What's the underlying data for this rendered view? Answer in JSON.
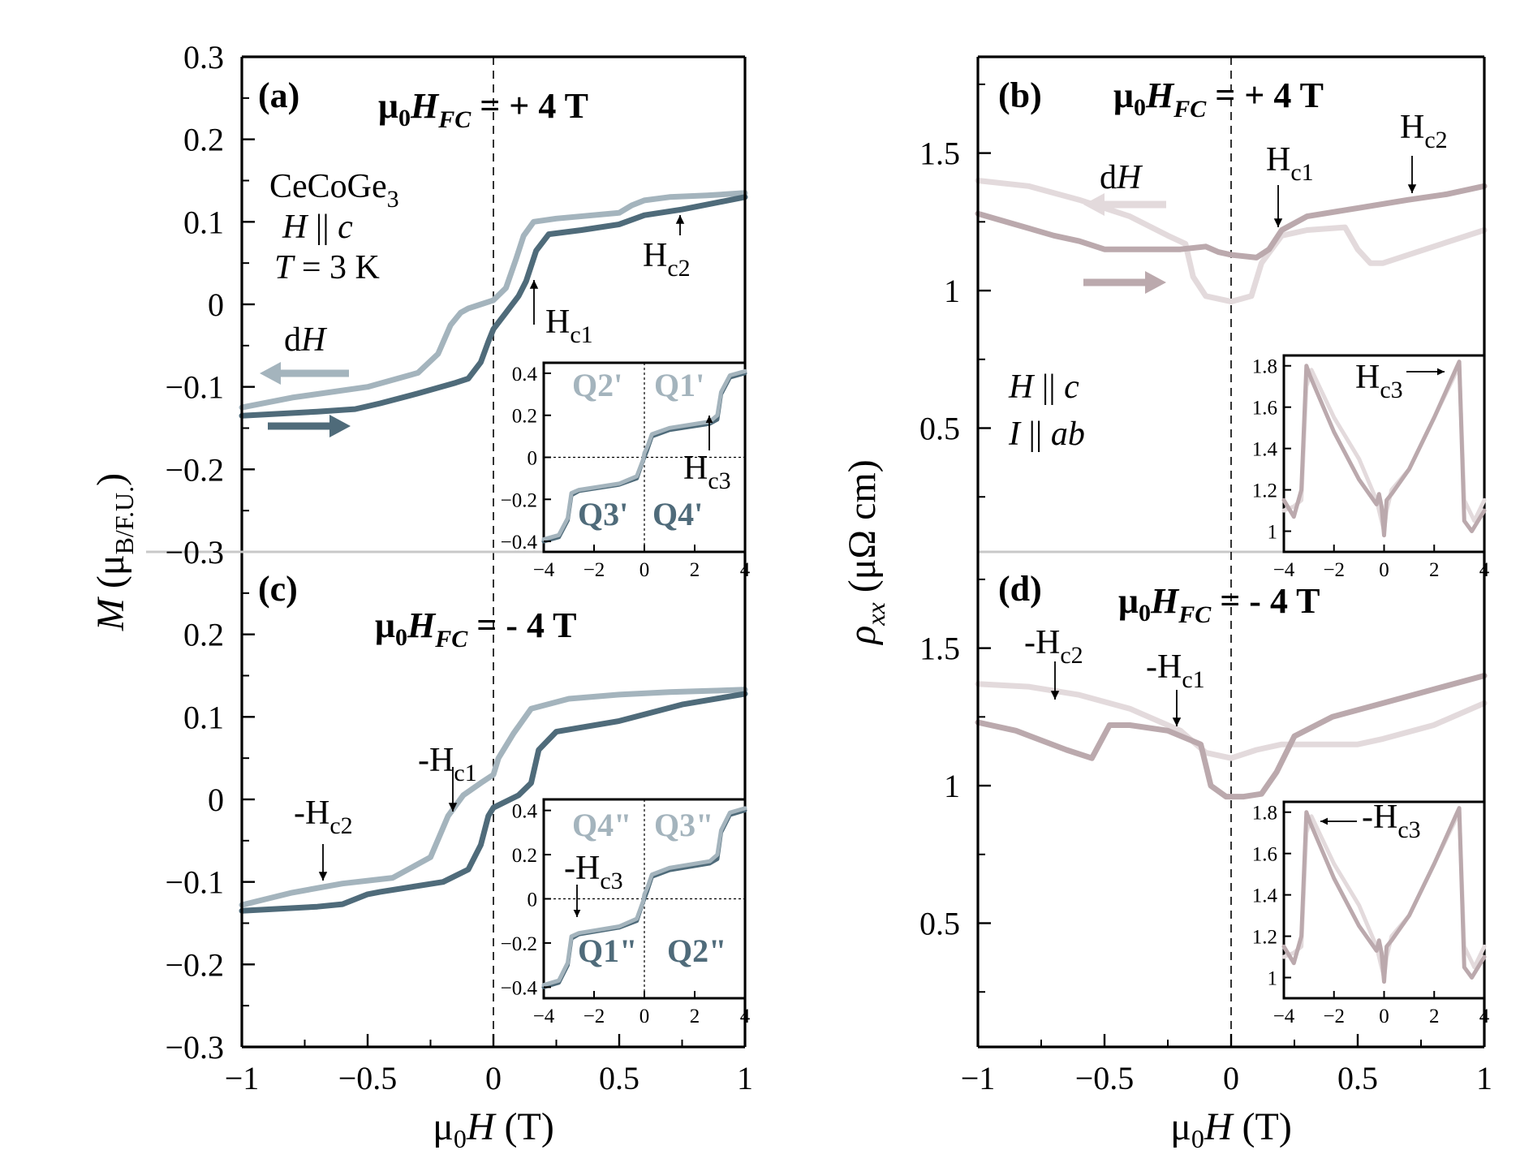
{
  "figure": {
    "xlabel": "μ0H (T)",
    "ylabel_left": "M (μB/F.U.)",
    "ylabel_right": "ρxx (μΩ cm)"
  },
  "colors": {
    "m_up": "#4f6b7a",
    "m_down": "#a4b4bd",
    "r_dark": "#bba9ad",
    "r_light": "#e3dadc"
  },
  "chart_data": [
    {
      "type": "line",
      "panel": "a",
      "label": "(a)",
      "field_cooling": "μ0HFC = + 4 T",
      "annotations": [
        "CeCoGe3",
        "H || c",
        "T = 3 K",
        "dH",
        "Hc1",
        "Hc2"
      ],
      "xlim": [
        -1,
        1
      ],
      "ylim": [
        -0.3,
        0.3
      ],
      "xticks": [
        "−1",
        "−0.5",
        "0",
        "0.5",
        "1"
      ],
      "yticks": [
        "−0.3",
        "−0.2",
        "−0.1",
        "0",
        "0.1",
        "0.2",
        "0.3"
      ],
      "series": [
        {
          "color": "#a4b4bd",
          "x": [
            -1,
            -0.8,
            -0.5,
            -0.3,
            -0.22,
            -0.17,
            -0.13,
            -0.1,
            -0.05,
            0,
            0.05,
            0.09,
            0.12,
            0.16,
            0.25,
            0.5,
            0.55,
            0.6,
            0.7,
            0.85,
            1
          ],
          "y": [
            -0.125,
            -0.113,
            -0.1,
            -0.083,
            -0.06,
            -0.025,
            -0.01,
            -0.005,
            0,
            0.005,
            0.02,
            0.055,
            0.083,
            0.1,
            0.104,
            0.111,
            0.12,
            0.126,
            0.13,
            0.132,
            0.135
          ]
        },
        {
          "color": "#4f6b7a",
          "x": [
            -1,
            -0.7,
            -0.55,
            -0.45,
            -0.3,
            -0.15,
            -0.1,
            -0.05,
            -0.02,
            0,
            0.05,
            0.1,
            0.13,
            0.17,
            0.22,
            0.35,
            0.5,
            0.6,
            0.75,
            1
          ],
          "y": [
            -0.135,
            -0.13,
            -0.127,
            -0.12,
            -0.108,
            -0.095,
            -0.09,
            -0.07,
            -0.045,
            -0.03,
            -0.01,
            0.01,
            0.028,
            0.065,
            0.085,
            0.09,
            0.097,
            0.108,
            0.115,
            0.13
          ]
        }
      ],
      "inset": {
        "xlim": [
          -4,
          4
        ],
        "ylim": [
          -0.45,
          0.45
        ],
        "xticks": [
          "−4",
          "−2",
          "0",
          "2",
          "4"
        ],
        "yticks": [
          "−0.4",
          "−0.2",
          "0",
          "0.2",
          "0.4"
        ],
        "quadrants": [
          "Q2'",
          "Q1'",
          "Q3'",
          "Q4'"
        ],
        "annotation": "Hc3",
        "series": [
          {
            "color": "#4f6b7a",
            "x": [
              -4,
              -3.4,
              -3.05,
              -2.9,
              -2.6,
              -1,
              -0.3,
              -0.1,
              0,
              0.1,
              0.3,
              1,
              2.6,
              2.9,
              3.05,
              3.4,
              4
            ],
            "y": [
              -0.4,
              -0.38,
              -0.3,
              -0.18,
              -0.16,
              -0.13,
              -0.1,
              -0.03,
              0,
              0.03,
              0.1,
              0.13,
              0.16,
              0.18,
              0.3,
              0.38,
              0.4
            ]
          },
          {
            "color": "#a4b4bd",
            "x": [
              -4,
              -3.4,
              -3.05,
              -2.9,
              -2.6,
              -1,
              -0.3,
              -0.05,
              0,
              0.15,
              0.3,
              1,
              2.6,
              2.9,
              3.05,
              3.4,
              4
            ],
            "y": [
              -0.39,
              -0.37,
              -0.29,
              -0.17,
              -0.155,
              -0.125,
              -0.09,
              -0.01,
              0.02,
              0.06,
              0.11,
              0.14,
              0.17,
              0.2,
              0.31,
              0.39,
              0.41
            ]
          }
        ]
      }
    },
    {
      "type": "line",
      "panel": "b",
      "label": "(b)",
      "field_cooling": "μ0HFC = + 4 T",
      "annotations": [
        "dH",
        "Hc1",
        "Hc2",
        "H || c",
        "I || ab"
      ],
      "xlim": [
        -1,
        1
      ],
      "ylim": [
        0.05,
        1.85
      ],
      "xticks": [
        "−1",
        "−0.5",
        "0",
        "0.5",
        "1"
      ],
      "yticks": [
        "0.5",
        "1",
        "1.5"
      ],
      "series": [
        {
          "color": "#e3dadc",
          "x": [
            -1,
            -0.8,
            -0.6,
            -0.4,
            -0.25,
            -0.18,
            -0.15,
            -0.1,
            0,
            0.08,
            0.12,
            0.2,
            0.3,
            0.45,
            0.5,
            0.55,
            0.6,
            0.8,
            1
          ],
          "y": [
            1.4,
            1.38,
            1.33,
            1.27,
            1.2,
            1.17,
            1.05,
            0.98,
            0.96,
            0.98,
            1.1,
            1.2,
            1.22,
            1.23,
            1.15,
            1.1,
            1.1,
            1.16,
            1.22
          ]
        },
        {
          "color": "#bba9ad",
          "x": [
            -1,
            -0.85,
            -0.7,
            -0.6,
            -0.5,
            -0.35,
            -0.2,
            -0.1,
            -0.05,
            0,
            0.1,
            0.15,
            0.2,
            0.3,
            0.5,
            0.7,
            0.85,
            1
          ],
          "y": [
            1.28,
            1.24,
            1.2,
            1.18,
            1.15,
            1.15,
            1.15,
            1.16,
            1.14,
            1.13,
            1.12,
            1.15,
            1.22,
            1.27,
            1.3,
            1.33,
            1.35,
            1.38
          ]
        }
      ],
      "inset": {
        "xlim": [
          -4,
          4
        ],
        "ylim": [
          0.9,
          1.85
        ],
        "xticks": [
          "−4",
          "−2",
          "0",
          "2",
          "4"
        ],
        "yticks": [
          "1",
          "1.2",
          "1.4",
          "1.6",
          "1.8"
        ],
        "annotation": "Hc3",
        "series": [
          {
            "color": "#e3dadc",
            "x": [
              -4,
              -3.6,
              -3.3,
              -3.1,
              -2.9,
              -2,
              -1,
              -0.3,
              -0.1,
              0,
              0.1,
              0.3,
              1,
              2,
              2.8,
              3,
              3.2,
              3.6,
              4
            ],
            "y": [
              1.1,
              1.12,
              1.15,
              1.7,
              1.78,
              1.55,
              1.35,
              1.15,
              1.05,
              1.0,
              1.1,
              1.2,
              1.3,
              1.55,
              1.75,
              1.8,
              1.15,
              1.05,
              1.15
            ]
          },
          {
            "color": "#bba9ad",
            "x": [
              -4,
              -3.6,
              -3.3,
              -3.1,
              -2.95,
              -2,
              -1,
              -0.3,
              -0.2,
              -0.1,
              0,
              0.1,
              0.3,
              1,
              2,
              2.85,
              3,
              3.2,
              3.5,
              4
            ],
            "y": [
              1.15,
              1.07,
              1.2,
              1.8,
              1.75,
              1.48,
              1.25,
              1.13,
              1.18,
              1.12,
              0.98,
              1.15,
              1.18,
              1.3,
              1.55,
              1.78,
              1.82,
              1.05,
              1.0,
              1.1
            ]
          }
        ]
      }
    },
    {
      "type": "line",
      "panel": "c",
      "label": "(c)",
      "field_cooling": "μ0HFC = - 4 T",
      "annotations": [
        "-Hc1",
        "-Hc2"
      ],
      "xlim": [
        -1,
        1
      ],
      "ylim": [
        -0.3,
        0.3
      ],
      "xticks": [
        "−1",
        "−0.5",
        "0",
        "0.5",
        "1"
      ],
      "yticks": [
        "−0.3",
        "−0.2",
        "−0.1",
        "0",
        "0.1",
        "0.2",
        "0.3"
      ],
      "series": [
        {
          "color": "#a4b4bd",
          "x": [
            -1,
            -0.8,
            -0.6,
            -0.4,
            -0.25,
            -0.18,
            -0.12,
            -0.05,
            0,
            0.02,
            0.08,
            0.15,
            0.3,
            0.5,
            0.7,
            1
          ],
          "y": [
            -0.128,
            -0.113,
            -0.102,
            -0.095,
            -0.07,
            -0.02,
            0.005,
            0.02,
            0.03,
            0.05,
            0.08,
            0.11,
            0.122,
            0.127,
            0.13,
            0.133
          ]
        },
        {
          "color": "#4f6b7a",
          "x": [
            -1,
            -0.7,
            -0.6,
            -0.5,
            -0.45,
            -0.2,
            -0.1,
            -0.05,
            -0.02,
            0,
            0.1,
            0.15,
            0.18,
            0.25,
            0.5,
            0.75,
            1
          ],
          "y": [
            -0.135,
            -0.13,
            -0.127,
            -0.115,
            -0.112,
            -0.1,
            -0.085,
            -0.055,
            -0.02,
            -0.01,
            0.005,
            0.02,
            0.06,
            0.082,
            0.095,
            0.115,
            0.128
          ]
        }
      ],
      "inset": {
        "xlim": [
          -4,
          4
        ],
        "ylim": [
          -0.45,
          0.45
        ],
        "xticks": [
          "−4",
          "−2",
          "0",
          "2",
          "4"
        ],
        "yticks": [
          "−0.4",
          "−0.2",
          "0",
          "0.2",
          "0.4"
        ],
        "quadrants": [
          "Q4\"",
          "Q3\"",
          "Q1\"",
          "Q2\""
        ],
        "annotation": "-Hc3",
        "series": [
          {
            "color": "#4f6b7a",
            "x": [
              -4,
              -3.4,
              -3.05,
              -2.9,
              -2.6,
              -1,
              -0.3,
              -0.1,
              0,
              0.1,
              0.3,
              1,
              2.6,
              2.9,
              3.05,
              3.4,
              4
            ],
            "y": [
              -0.4,
              -0.38,
              -0.3,
              -0.18,
              -0.16,
              -0.13,
              -0.1,
              -0.03,
              0,
              0.03,
              0.1,
              0.13,
              0.16,
              0.18,
              0.3,
              0.38,
              0.4
            ]
          },
          {
            "color": "#a4b4bd",
            "x": [
              -4,
              -3.4,
              -3.05,
              -2.9,
              -2.6,
              -1,
              -0.3,
              -0.05,
              0,
              0.15,
              0.3,
              1,
              2.6,
              2.9,
              3.05,
              3.4,
              4
            ],
            "y": [
              -0.39,
              -0.37,
              -0.29,
              -0.17,
              -0.155,
              -0.125,
              -0.09,
              -0.01,
              0.02,
              0.06,
              0.11,
              0.14,
              0.17,
              0.2,
              0.31,
              0.39,
              0.41
            ]
          }
        ]
      }
    },
    {
      "type": "line",
      "panel": "d",
      "label": "(d)",
      "field_cooling": "μ0HFC = - 4 T",
      "annotations": [
        "-Hc2",
        "-Hc1"
      ],
      "xlim": [
        -1,
        1
      ],
      "ylim": [
        0.05,
        1.85
      ],
      "xticks": [
        "−1",
        "−0.5",
        "0",
        "0.5",
        "1"
      ],
      "yticks": [
        "0.5",
        "1",
        "1.5"
      ],
      "series": [
        {
          "color": "#e3dadc",
          "x": [
            -1,
            -0.8,
            -0.6,
            -0.4,
            -0.2,
            -0.1,
            0,
            0.1,
            0.2,
            0.3,
            0.5,
            0.6,
            0.8,
            1
          ],
          "y": [
            1.37,
            1.36,
            1.33,
            1.28,
            1.2,
            1.12,
            1.1,
            1.13,
            1.15,
            1.15,
            1.15,
            1.17,
            1.22,
            1.3
          ]
        },
        {
          "color": "#bba9ad",
          "x": [
            -1,
            -0.85,
            -0.65,
            -0.55,
            -0.48,
            -0.4,
            -0.25,
            -0.12,
            -0.08,
            -0.02,
            0.05,
            0.12,
            0.18,
            0.25,
            0.4,
            0.6,
            0.8,
            1
          ],
          "y": [
            1.23,
            1.2,
            1.13,
            1.1,
            1.22,
            1.22,
            1.2,
            1.15,
            1.0,
            0.96,
            0.96,
            0.97,
            1.05,
            1.18,
            1.25,
            1.3,
            1.35,
            1.4
          ]
        }
      ],
      "inset": {
        "xlim": [
          -4,
          4
        ],
        "ylim": [
          0.9,
          1.85
        ],
        "xticks": [
          "−4",
          "−2",
          "0",
          "2",
          "4"
        ],
        "yticks": [
          "1",
          "1.2",
          "1.4",
          "1.6",
          "1.8"
        ],
        "annotation": "-Hc3",
        "series": [
          {
            "color": "#e3dadc",
            "x": [
              -4,
              -3.6,
              -3.3,
              -3.1,
              -2.9,
              -2,
              -1,
              -0.3,
              -0.1,
              0,
              0.1,
              0.3,
              1,
              2,
              2.8,
              3,
              3.2,
              3.6,
              4
            ],
            "y": [
              1.1,
              1.12,
              1.15,
              1.7,
              1.78,
              1.55,
              1.35,
              1.15,
              1.05,
              1.0,
              1.1,
              1.2,
              1.3,
              1.55,
              1.75,
              1.8,
              1.15,
              1.05,
              1.15
            ]
          },
          {
            "color": "#bba9ad",
            "x": [
              -4,
              -3.6,
              -3.3,
              -3.1,
              -2.95,
              -2,
              -1,
              -0.3,
              -0.2,
              -0.1,
              0,
              0.1,
              0.3,
              1,
              2,
              2.85,
              3,
              3.2,
              3.5,
              4
            ],
            "y": [
              1.15,
              1.07,
              1.2,
              1.8,
              1.75,
              1.48,
              1.25,
              1.13,
              1.18,
              1.12,
              0.98,
              1.15,
              1.18,
              1.3,
              1.55,
              1.78,
              1.82,
              1.05,
              1.0,
              1.1
            ]
          }
        ]
      }
    }
  ]
}
